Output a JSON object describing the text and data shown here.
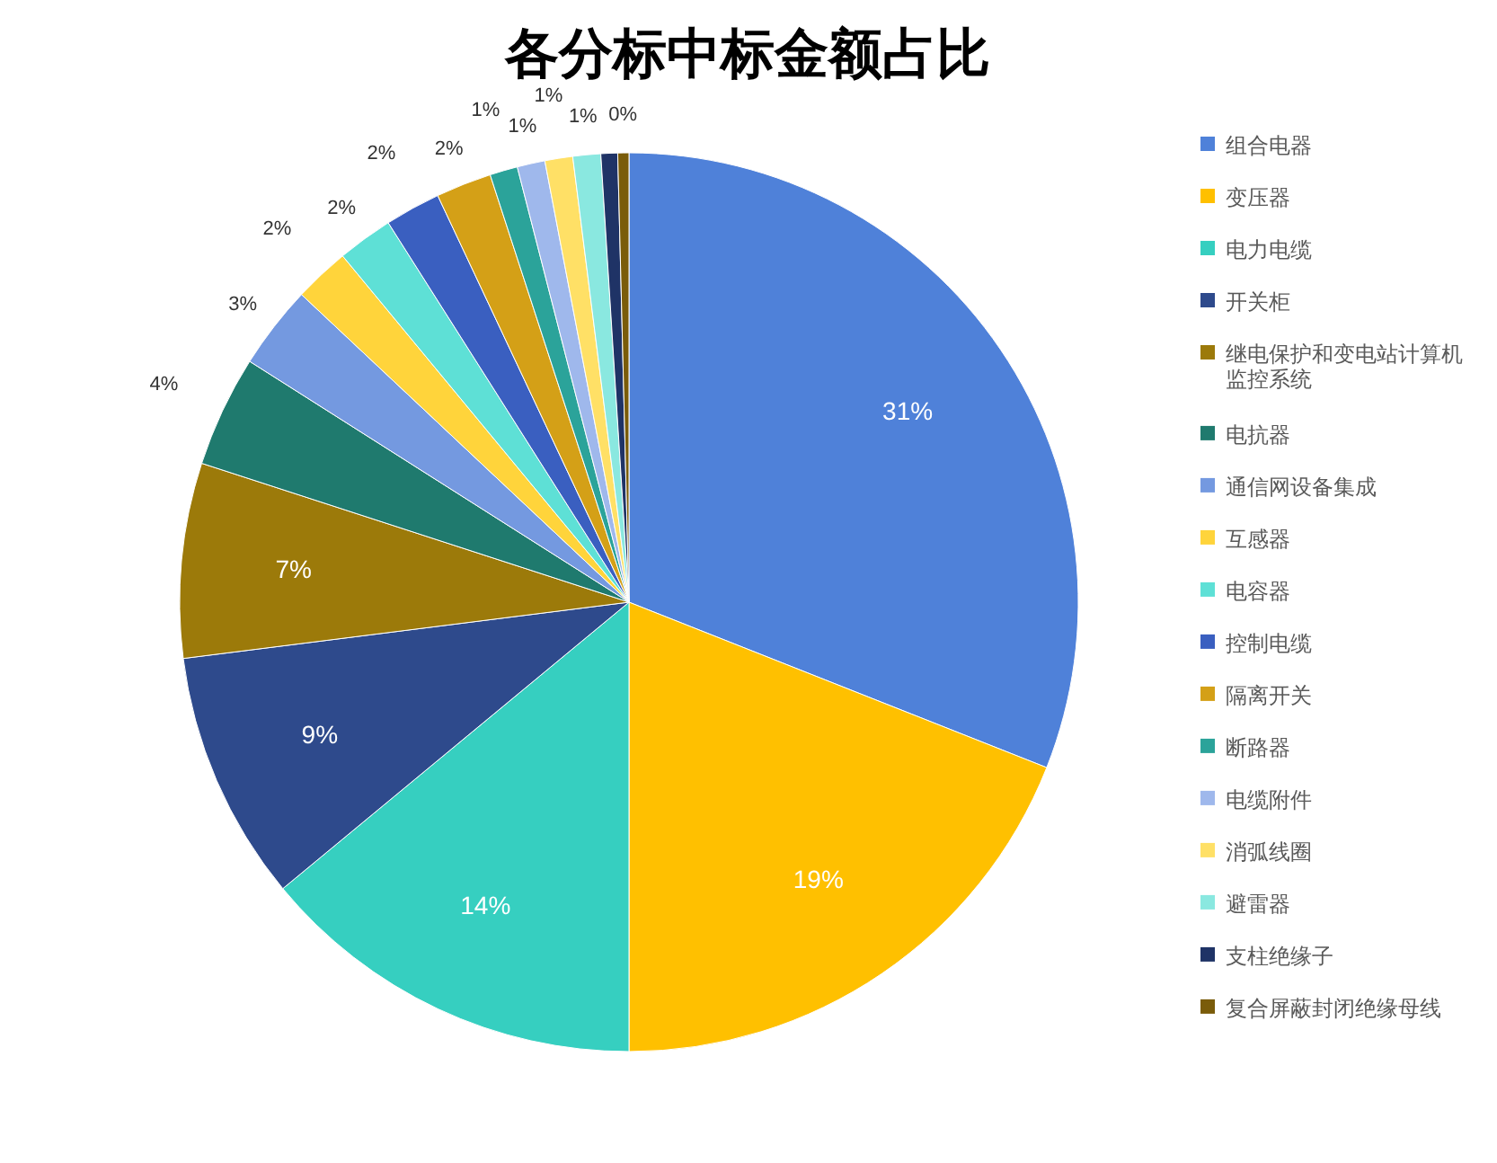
{
  "chart_data": {
    "type": "pie",
    "title": "各分标中标金额占比",
    "categories": [
      "组合电器",
      "变压器",
      "电力电缆",
      "开关柜",
      "继电保护和变电站计算机监控系统",
      "电抗器",
      "通信网设备集成",
      "互感器",
      "电容器",
      "控制电缆",
      "隔离开关",
      "断路器",
      "电缆附件",
      "消弧线圈",
      "避雷器",
      "支柱绝缘子",
      "复合屏蔽封闭绝缘母线"
    ],
    "values": [
      31,
      19,
      14,
      9,
      7,
      4,
      3,
      2,
      2,
      2,
      2,
      1,
      1,
      1,
      1,
      0.6,
      0.4
    ],
    "value_labels": [
      "31%",
      "19%",
      "14%",
      "9%",
      "7%",
      "4%",
      "3%",
      "2%",
      "2%",
      "2%",
      "2%",
      "1%",
      "1%",
      "1%",
      "1%",
      null,
      "0%"
    ],
    "colors": [
      "#4f81d9",
      "#ffc000",
      "#36cfc0",
      "#2e4a8c",
      "#9c7a0a",
      "#1f7a6e",
      "#7499e0",
      "#ffd43b",
      "#5ee0d6",
      "#3a5fc0",
      "#d4a017",
      "#2ba39a",
      "#9fb8ec",
      "#ffe066",
      "#8ae8e0",
      "#1f3366",
      "#7a5c0a"
    ],
    "legend": "right"
  }
}
